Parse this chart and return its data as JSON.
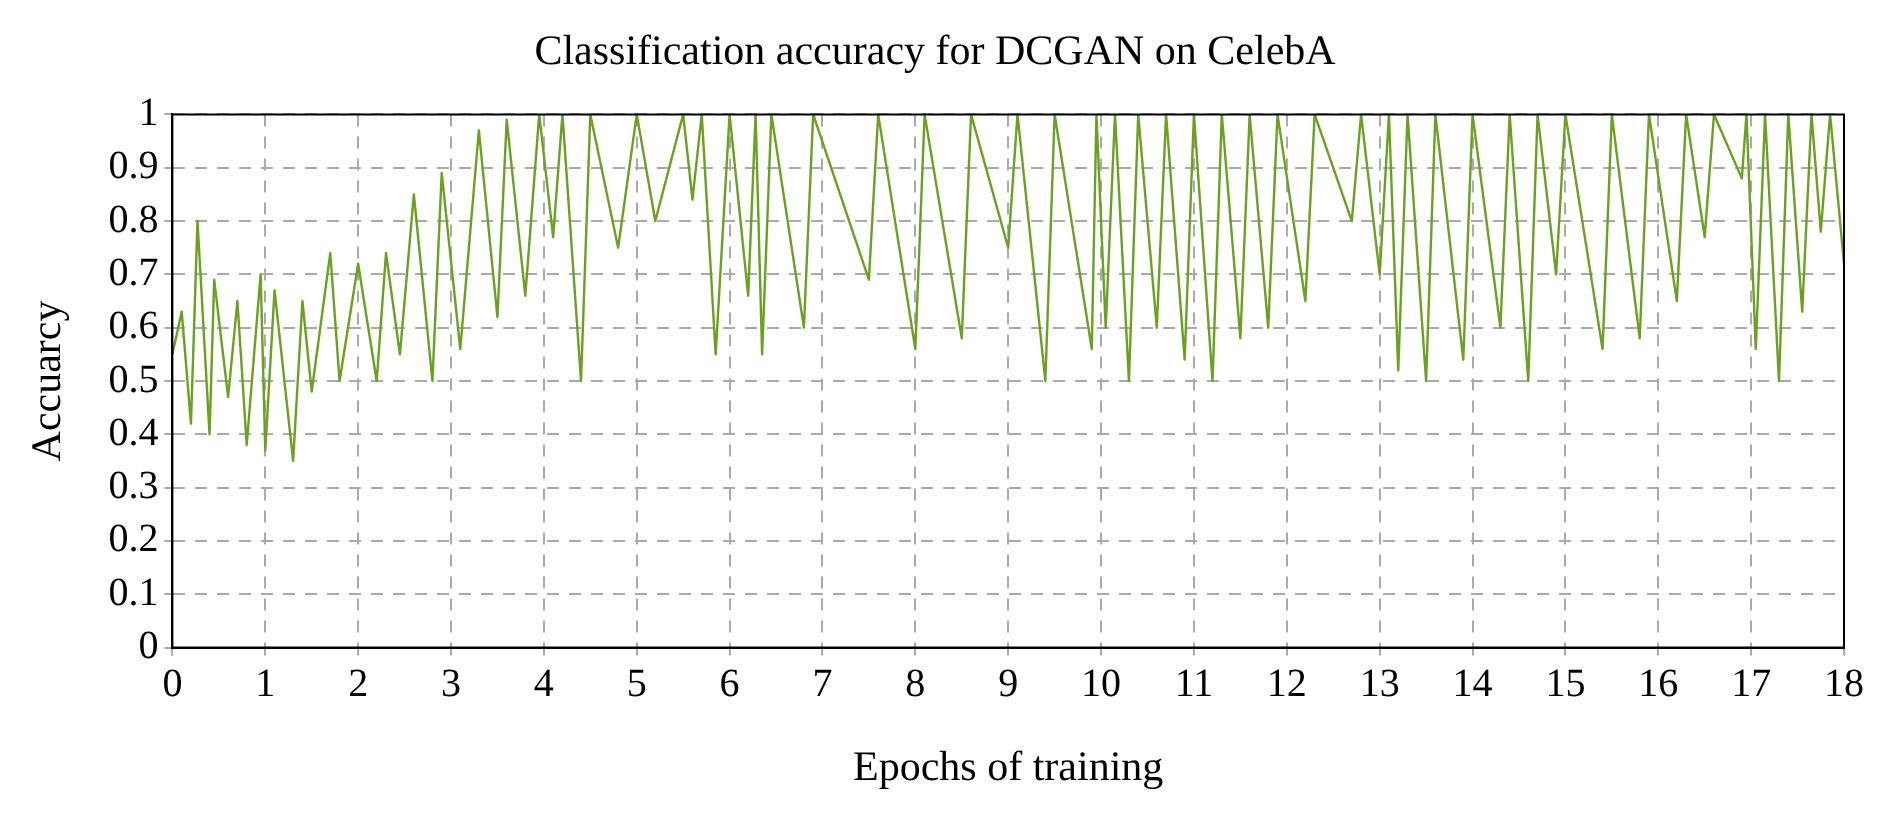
{
  "chart_data": {
    "type": "line",
    "title": "Classification accuracy for DCGAN on CelebA",
    "xlabel": "Epochs of training",
    "ylabel": "Accuarcy",
    "series": [
      {
        "color": "#6aa121",
        "x": [
          0,
          0.1,
          0.2,
          0.27,
          0.4,
          0.45,
          0.6,
          0.7,
          0.8,
          0.95,
          1.0,
          1.1,
          1.3,
          1.4,
          1.5,
          1.7,
          1.8,
          2.0,
          2.2,
          2.3,
          2.45,
          2.6,
          2.8,
          2.9,
          3.1,
          3.3,
          3.5,
          3.6,
          3.8,
          3.95,
          4.1,
          4.2,
          4.4,
          4.5,
          4.8,
          5.0,
          5.2,
          5.5,
          5.6,
          5.7,
          5.85,
          6.0,
          6.2,
          6.28,
          6.35,
          6.45,
          6.8,
          6.9,
          7.5,
          7.6,
          8.0,
          8.1,
          8.5,
          8.6,
          9.0,
          9.1,
          9.4,
          9.5,
          9.9,
          9.95,
          10.05,
          10.15,
          10.3,
          10.4,
          10.6,
          10.7,
          10.9,
          11.0,
          11.2,
          11.3,
          11.5,
          11.6,
          11.8,
          11.9,
          12.2,
          12.3,
          12.7,
          12.8,
          13.0,
          13.1,
          13.2,
          13.3,
          13.5,
          13.6,
          13.9,
          14.0,
          14.3,
          14.4,
          14.6,
          14.7,
          14.9,
          15.0,
          15.4,
          15.5,
          15.8,
          15.9,
          16.2,
          16.3,
          16.5,
          16.6,
          16.9,
          16.95,
          17.05,
          17.15,
          17.3,
          17.4,
          17.55,
          17.65,
          17.75,
          17.85,
          18
        ],
        "values": [
          0.55,
          0.63,
          0.42,
          0.8,
          0.4,
          0.69,
          0.47,
          0.65,
          0.38,
          0.7,
          0.37,
          0.67,
          0.35,
          0.65,
          0.48,
          0.74,
          0.5,
          0.72,
          0.5,
          0.74,
          0.55,
          0.85,
          0.5,
          0.89,
          0.56,
          0.97,
          0.62,
          0.99,
          0.66,
          1,
          0.77,
          1,
          0.5,
          1,
          0.75,
          1,
          0.8,
          1,
          0.84,
          1,
          0.55,
          1,
          0.66,
          1,
          0.55,
          1,
          0.6,
          1,
          0.69,
          1,
          0.56,
          1,
          0.58,
          1,
          0.75,
          1,
          0.5,
          1,
          0.56,
          1,
          0.6,
          1,
          0.5,
          1,
          0.6,
          1,
          0.54,
          1,
          0.5,
          1,
          0.58,
          1,
          0.6,
          1,
          0.65,
          1,
          0.8,
          1,
          0.7,
          1,
          0.52,
          1,
          0.5,
          1,
          0.54,
          1,
          0.6,
          1,
          0.5,
          1,
          0.7,
          1,
          0.56,
          1,
          0.58,
          1,
          0.65,
          1,
          0.77,
          1,
          0.88,
          1,
          0.56,
          1,
          0.5,
          1,
          0.63,
          1,
          0.78,
          1,
          0.72
        ]
      }
    ],
    "xlim": [
      0,
      18
    ],
    "xticks": [
      0,
      1,
      2,
      3,
      4,
      5,
      6,
      7,
      8,
      9,
      10,
      11,
      12,
      13,
      14,
      15,
      16,
      17,
      18
    ],
    "ylim": [
      0,
      1
    ],
    "yticks": [
      0,
      0.1,
      0.2,
      0.3,
      0.4,
      0.5,
      0.6,
      0.7,
      0.8,
      0.9,
      1
    ],
    "grid": true,
    "legend": false,
    "marker": "none",
    "line_style": "solid"
  }
}
